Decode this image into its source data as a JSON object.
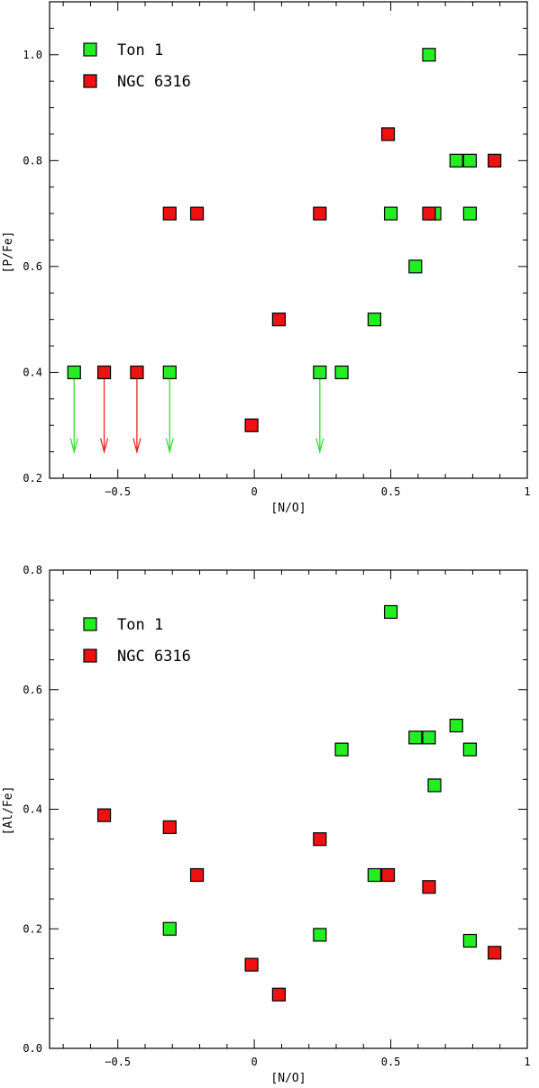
{
  "colors": {
    "ton1": "#22ee22",
    "ngc6316": "#ee1111",
    "ton1_arrow": "#33dd33",
    "ngc6316_arrow": "#ee2222"
  },
  "chart_data": [
    {
      "type": "scatter",
      "xlabel": "[N/O]",
      "ylabel": "[P/Fe]",
      "xlim": [
        -0.75,
        1.0
      ],
      "ylim": [
        0.2,
        1.1
      ],
      "xticks": [
        -0.5,
        0,
        0.5,
        1
      ],
      "xtick_labels": [
        "−0.5",
        "0",
        "0.5",
        "1"
      ],
      "yticks": [
        0.2,
        0.4,
        0.6,
        0.8,
        1.0
      ],
      "ytick_labels": [
        "0.2",
        "0.4",
        "0.6",
        "0.8",
        "1.0"
      ],
      "legend": "top-left",
      "series": [
        {
          "name": "Ton 1",
          "color": "#22ee22",
          "points": [
            {
              "x": -0.66,
              "y": 0.4,
              "upper_limit": true
            },
            {
              "x": -0.31,
              "y": 0.4,
              "upper_limit": true
            },
            {
              "x": 0.24,
              "y": 0.4,
              "upper_limit": true
            },
            {
              "x": 0.32,
              "y": 0.4
            },
            {
              "x": 0.44,
              "y": 0.5
            },
            {
              "x": 0.59,
              "y": 0.6
            },
            {
              "x": 0.5,
              "y": 0.7
            },
            {
              "x": 0.66,
              "y": 0.7
            },
            {
              "x": 0.79,
              "y": 0.7
            },
            {
              "x": 0.74,
              "y": 0.8
            },
            {
              "x": 0.79,
              "y": 0.8
            },
            {
              "x": 0.64,
              "y": 1.0
            }
          ]
        },
        {
          "name": "NGC 6316",
          "color": "#ee1111",
          "points": [
            {
              "x": -0.55,
              "y": 0.4,
              "upper_limit": true
            },
            {
              "x": -0.43,
              "y": 0.4,
              "upper_limit": true
            },
            {
              "x": -0.31,
              "y": 0.7
            },
            {
              "x": -0.21,
              "y": 0.7
            },
            {
              "x": -0.01,
              "y": 0.3
            },
            {
              "x": 0.09,
              "y": 0.5
            },
            {
              "x": 0.24,
              "y": 0.7
            },
            {
              "x": 0.49,
              "y": 0.85
            },
            {
              "x": 0.64,
              "y": 0.7
            },
            {
              "x": 0.88,
              "y": 0.8
            }
          ]
        }
      ]
    },
    {
      "type": "scatter",
      "xlabel": "[N/O]",
      "ylabel": "[Al/Fe]",
      "xlim": [
        -0.75,
        1.0
      ],
      "ylim": [
        0.0,
        0.8
      ],
      "xticks": [
        -0.5,
        0,
        0.5,
        1
      ],
      "xtick_labels": [
        "−0.5",
        "0",
        "0.5",
        "1"
      ],
      "yticks": [
        0.0,
        0.2,
        0.4,
        0.6,
        0.8
      ],
      "ytick_labels": [
        "0.0",
        "0.2",
        "0.4",
        "0.6",
        "0.8"
      ],
      "legend": "top-left",
      "series": [
        {
          "name": "Ton 1",
          "color": "#22ee22",
          "points": [
            {
              "x": -0.31,
              "y": 0.2
            },
            {
              "x": 0.24,
              "y": 0.19
            },
            {
              "x": 0.32,
              "y": 0.5
            },
            {
              "x": 0.44,
              "y": 0.29
            },
            {
              "x": 0.5,
              "y": 0.73
            },
            {
              "x": 0.59,
              "y": 0.52
            },
            {
              "x": 0.64,
              "y": 0.52
            },
            {
              "x": 0.66,
              "y": 0.44
            },
            {
              "x": 0.74,
              "y": 0.54
            },
            {
              "x": 0.79,
              "y": 0.5
            },
            {
              "x": 0.79,
              "y": 0.18
            }
          ]
        },
        {
          "name": "NGC 6316",
          "color": "#ee1111",
          "points": [
            {
              "x": -0.55,
              "y": 0.39
            },
            {
              "x": -0.31,
              "y": 0.37
            },
            {
              "x": -0.21,
              "y": 0.29
            },
            {
              "x": -0.01,
              "y": 0.14
            },
            {
              "x": 0.09,
              "y": 0.09
            },
            {
              "x": 0.24,
              "y": 0.35
            },
            {
              "x": 0.49,
              "y": 0.29
            },
            {
              "x": 0.64,
              "y": 0.27
            },
            {
              "x": 0.88,
              "y": 0.16
            }
          ]
        }
      ]
    }
  ]
}
